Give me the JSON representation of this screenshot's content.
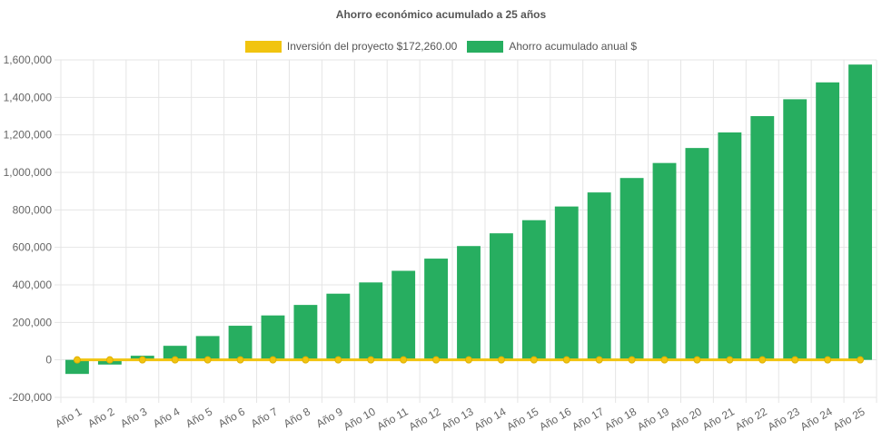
{
  "chart_data": {
    "type": "bar",
    "title": "Ahorro económico acumulado a 25 años",
    "categories": [
      "Año 1",
      "Año 2",
      "Año 3",
      "Año 4",
      "Año 5",
      "Año 6",
      "Año 7",
      "Año 8",
      "Año 9",
      "Año 10",
      "Año 11",
      "Año 12",
      "Año 13",
      "Año 14",
      "Año 15",
      "Año 16",
      "Año 17",
      "Año 18",
      "Año 19",
      "Año 20",
      "Año 21",
      "Año 22",
      "Año 23",
      "Año 24",
      "Año 25"
    ],
    "series": [
      {
        "name": "Inversión del proyecto $172,260.00",
        "type": "line",
        "color": "#f1c40f",
        "values": [
          0,
          0,
          0,
          0,
          0,
          0,
          0,
          0,
          0,
          0,
          0,
          0,
          0,
          0,
          0,
          0,
          0,
          0,
          0,
          0,
          0,
          0,
          0,
          0,
          0
        ]
      },
      {
        "name": "Ahorro acumulado anual $",
        "type": "bar",
        "color": "#27ae60",
        "values": [
          -75000,
          -25000,
          22000,
          75000,
          127000,
          182000,
          237000,
          293000,
          353000,
          413000,
          475000,
          540000,
          607000,
          675000,
          745000,
          818000,
          893000,
          970000,
          1050000,
          1130000,
          1213000,
          1300000,
          1390000,
          1480000,
          1575000
        ]
      }
    ],
    "ylim": [
      -200000,
      1600000
    ],
    "yticks": [
      "1,600,000",
      "1,400,000",
      "1,200,000",
      "1,000,000",
      "800,000",
      "600,000",
      "400,000",
      "200,000",
      "0",
      "-200,000"
    ],
    "ytick_values": [
      1600000,
      1400000,
      1200000,
      1000000,
      800000,
      600000,
      400000,
      200000,
      0,
      -200000
    ],
    "grid": true,
    "legend_position": "top"
  }
}
